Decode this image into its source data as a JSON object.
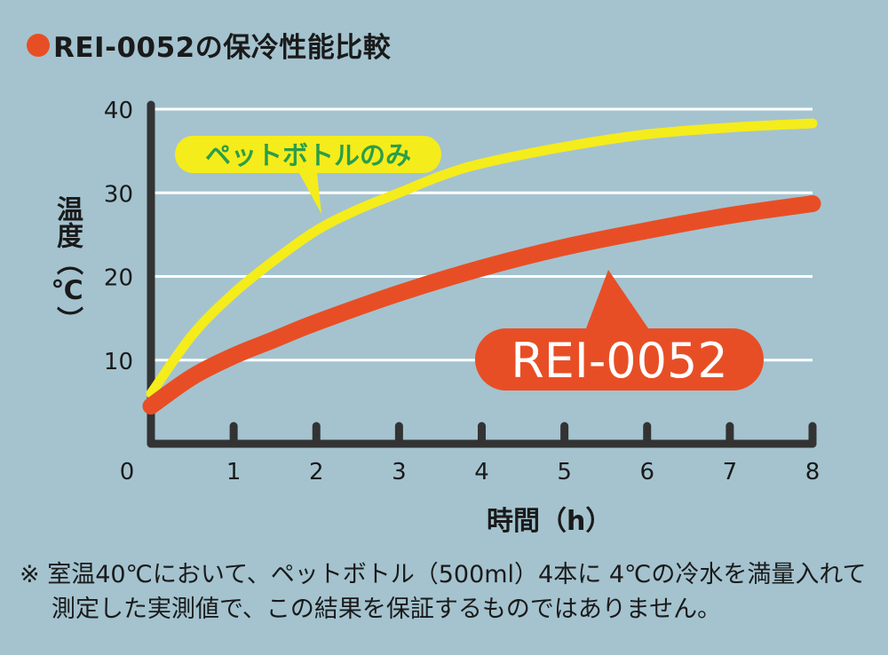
{
  "title": "REI-0052の保冷性能比較",
  "colors": {
    "background": "#a4c3cf",
    "yellow_series": "#f5ec1b",
    "red_series": "#e84e25",
    "axis": "#333333",
    "grid": "#ffffff",
    "callout_text_yellow": "#2a9e4a",
    "callout_text_red": "#ffffff"
  },
  "chart_data": {
    "type": "line",
    "xlabel": "時間（h）",
    "ylabel": "温度（℃）",
    "xlim": [
      0,
      8
    ],
    "ylim": [
      0,
      40
    ],
    "x_ticks": [
      "0",
      "1",
      "2",
      "3",
      "4",
      "5",
      "6",
      "7",
      "8"
    ],
    "y_ticks": [
      "10",
      "20",
      "30",
      "40"
    ],
    "grid": "horizontal",
    "series": [
      {
        "name": "ペットボトルのみ",
        "x": [
          0,
          0.5,
          1,
          1.5,
          2,
          2.5,
          3,
          3.5,
          4,
          5,
          6,
          7,
          8
        ],
        "values": [
          6,
          13,
          18,
          22,
          25.5,
          28,
          30,
          32,
          33.5,
          35.5,
          37,
          37.8,
          38.3
        ]
      },
      {
        "name": "REI-0052",
        "x": [
          0,
          0.5,
          1,
          1.5,
          2,
          3,
          4,
          5,
          6,
          7,
          8
        ],
        "values": [
          4.5,
          8,
          10.5,
          12.5,
          14.5,
          18,
          21,
          23.5,
          25.5,
          27.3,
          28.7
        ]
      }
    ]
  },
  "note": {
    "line1": "※ 室温40℃において、ペットボトル（500ml）4本に 4℃の冷水を満量入れて",
    "line2": "測定した実測値で、この結果を保証するものではありません。"
  }
}
